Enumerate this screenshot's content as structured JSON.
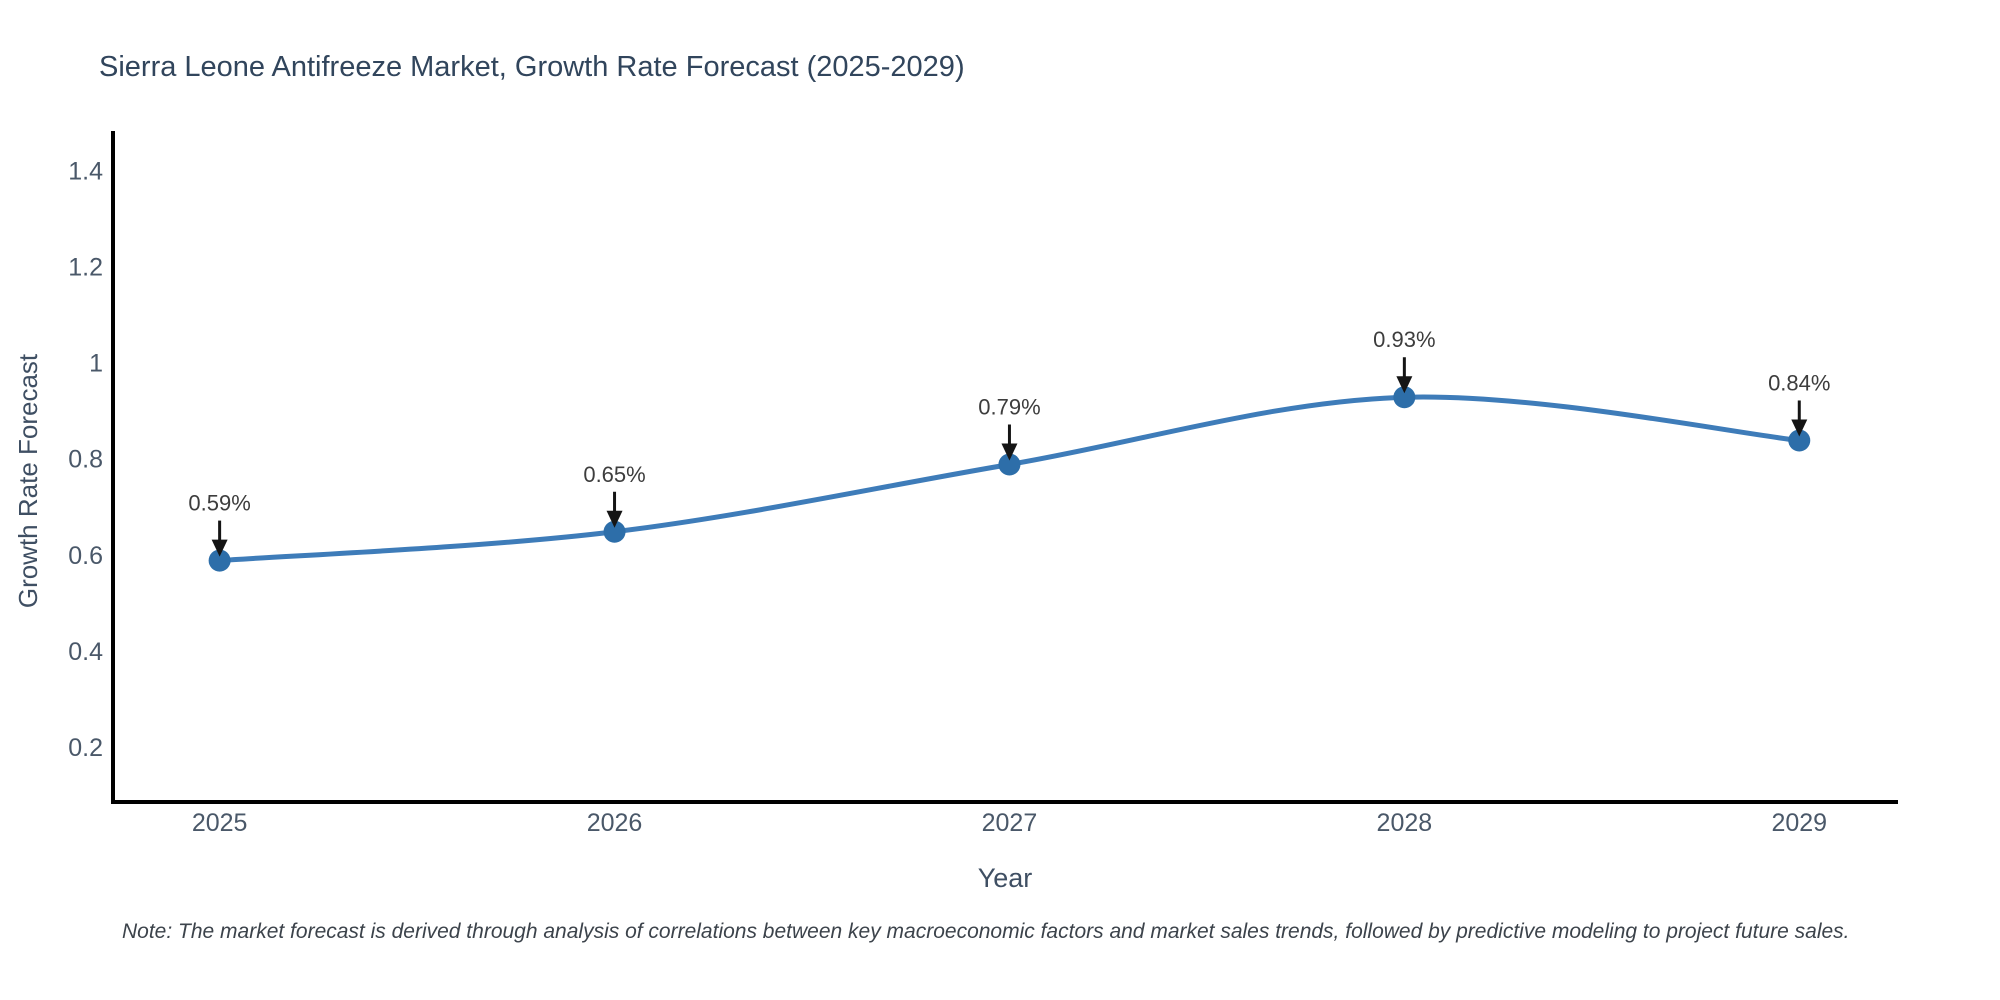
{
  "chart_data": {
    "type": "line",
    "title": "Sierra Leone Antifreeze Market, Growth Rate Forecast (2025-2029)",
    "xlabel": "Year",
    "ylabel": "Growth Rate Forecast",
    "x": [
      2025,
      2026,
      2027,
      2028,
      2029
    ],
    "y": [
      0.59,
      0.65,
      0.79,
      0.93,
      0.84
    ],
    "point_labels": [
      "0.59%",
      "0.65%",
      "0.79%",
      "0.93%",
      "0.84%"
    ],
    "xtick_labels": [
      "2025",
      "2026",
      "2027",
      "2028",
      "2029"
    ],
    "xtick_values": [
      2025,
      2026,
      2027,
      2028,
      2029
    ],
    "ytick_labels": [
      "0.2",
      "0.4",
      "0.6",
      "0.8",
      "1",
      "1.2",
      "1.4"
    ],
    "ytick_values": [
      0.2,
      0.4,
      0.6,
      0.8,
      1.0,
      1.2,
      1.4
    ],
    "xlim": [
      2024.73,
      2029.25
    ],
    "ylim": [
      0.0875,
      1.48
    ],
    "line_shape": "spline",
    "grid": false,
    "legend": "none",
    "colors": {
      "line": "#3e7cb9",
      "marker": "#2d6ea9",
      "axis_line": "#000000",
      "tick_text": "#4a5869",
      "annotation_text": "#3d3d3d",
      "arrow": "#151515"
    },
    "note": "Note: The market forecast is derived through analysis of correlations between key macroeconomic factors and market sales trends, followed by predictive modeling to project future sales."
  }
}
